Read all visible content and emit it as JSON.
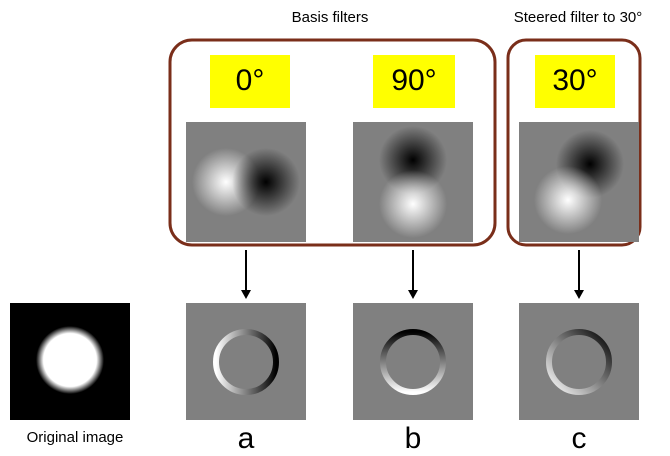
{
  "header": {
    "basis_title": "Basis filters",
    "steered_title": "Steered filter to 30°"
  },
  "filters": [
    {
      "label": "0°"
    },
    {
      "label": "90°"
    },
    {
      "label": "30°"
    }
  ],
  "original": {
    "caption": "Original image"
  },
  "results": [
    {
      "label": "a"
    },
    {
      "label": "b"
    },
    {
      "label": "c"
    }
  ]
}
